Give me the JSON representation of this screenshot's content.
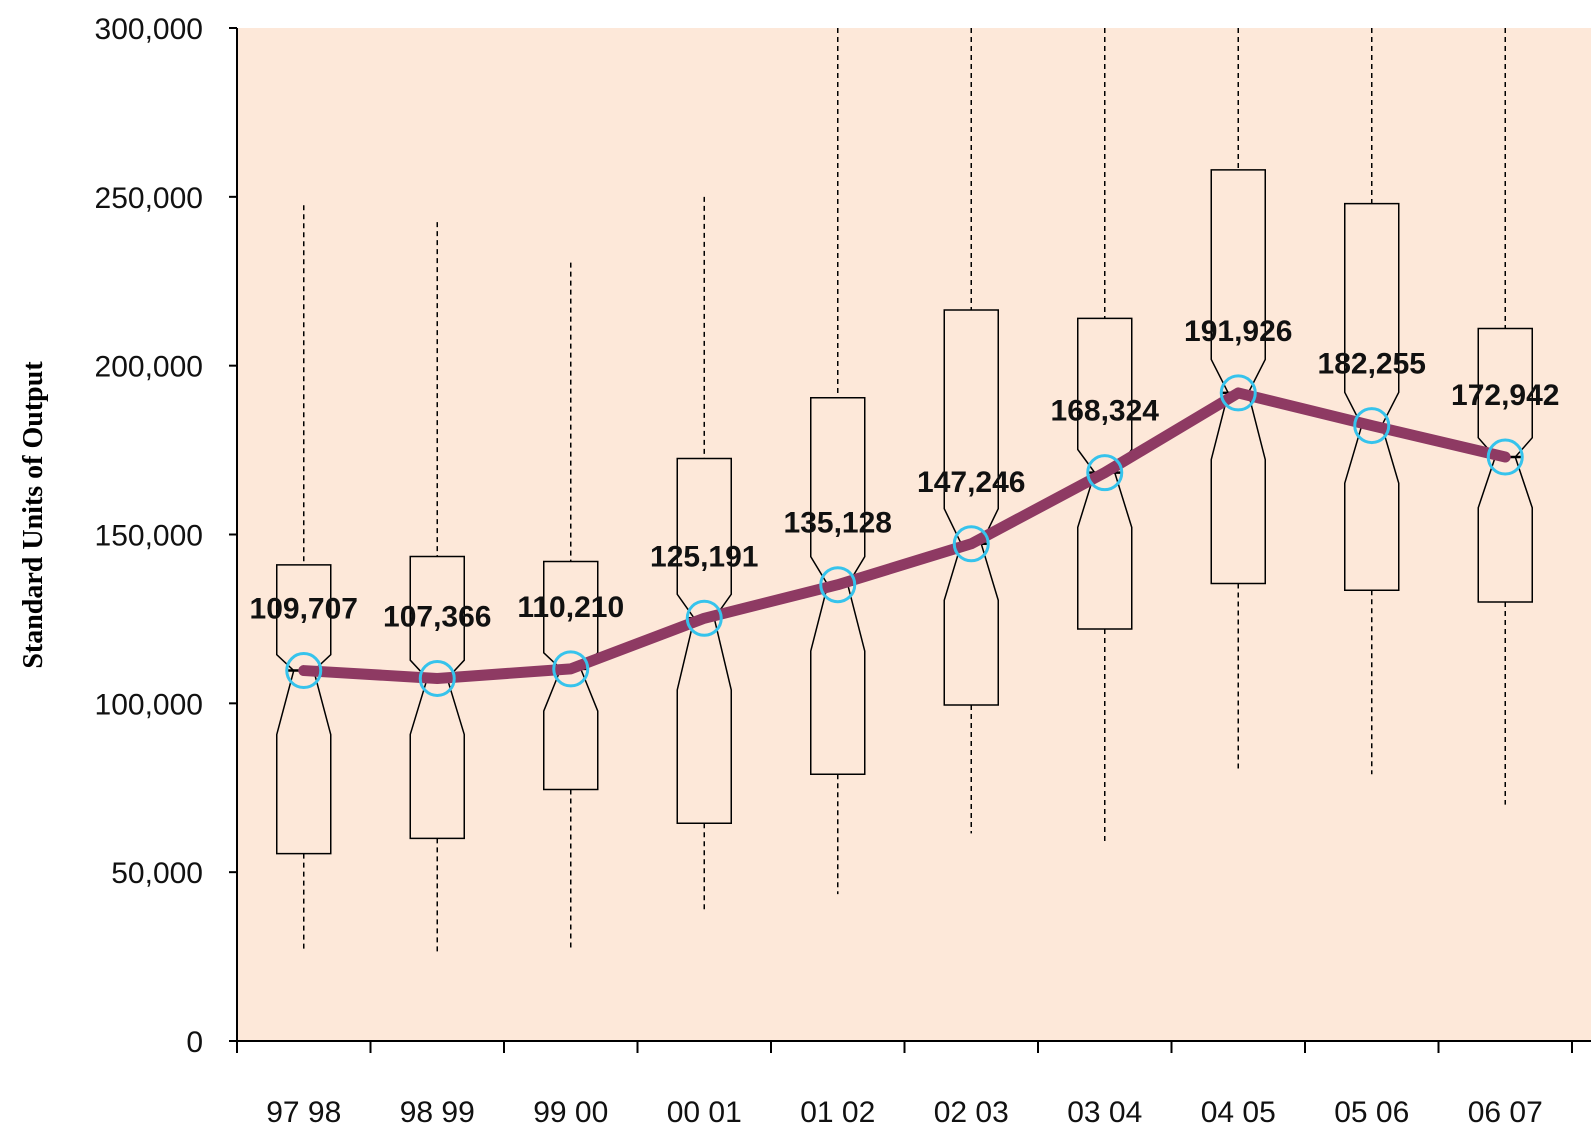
{
  "chart_data": {
    "type": "boxplot-line",
    "title": "",
    "xlabel": "",
    "ylabel": "Standard Units  of Output",
    "ylim": [
      0,
      300000
    ],
    "yticks": [
      0,
      50000,
      100000,
      150000,
      200000,
      250000,
      300000
    ],
    "ytick_labels": [
      "0",
      "50,000",
      "100,000",
      "150,000",
      "200,000",
      "250,000",
      "300,000"
    ],
    "categories": [
      "97 98",
      "98 99",
      "99 00",
      "00 01",
      "01 02",
      "02 03",
      "03 04",
      "04 05",
      "05 06",
      "06 07"
    ],
    "median": [
      109707,
      107366,
      110210,
      125191,
      135128,
      147246,
      168324,
      191926,
      182255,
      172942
    ],
    "median_labels": [
      "109,707",
      "107,366",
      "110,210",
      "125,191",
      "135,128",
      "147,246",
      "168,324",
      "191,926",
      "182,255",
      "172,942"
    ],
    "q1": [
      55500,
      60000,
      74500,
      64500,
      79000,
      99500,
      122000,
      135500,
      133500,
      130000
    ],
    "q3": [
      141000,
      143500,
      142000,
      172500,
      190500,
      216500,
      214000,
      258000,
      248000,
      211000
    ],
    "whisker_low": [
      26500,
      25500,
      27500,
      38000,
      43500,
      61500,
      58500,
      80000,
      79000,
      70000
    ],
    "whisker_high": [
      247500,
      242500,
      230500,
      250000,
      300000,
      300000,
      300000,
      300000,
      300000,
      300000
    ],
    "grid": false,
    "colors": {
      "plot_background": "#fde8d9",
      "median_line": "#8e3a63",
      "median_marker": "#36c3ec",
      "box_stroke": "#000000",
      "axis": "#000000"
    }
  }
}
